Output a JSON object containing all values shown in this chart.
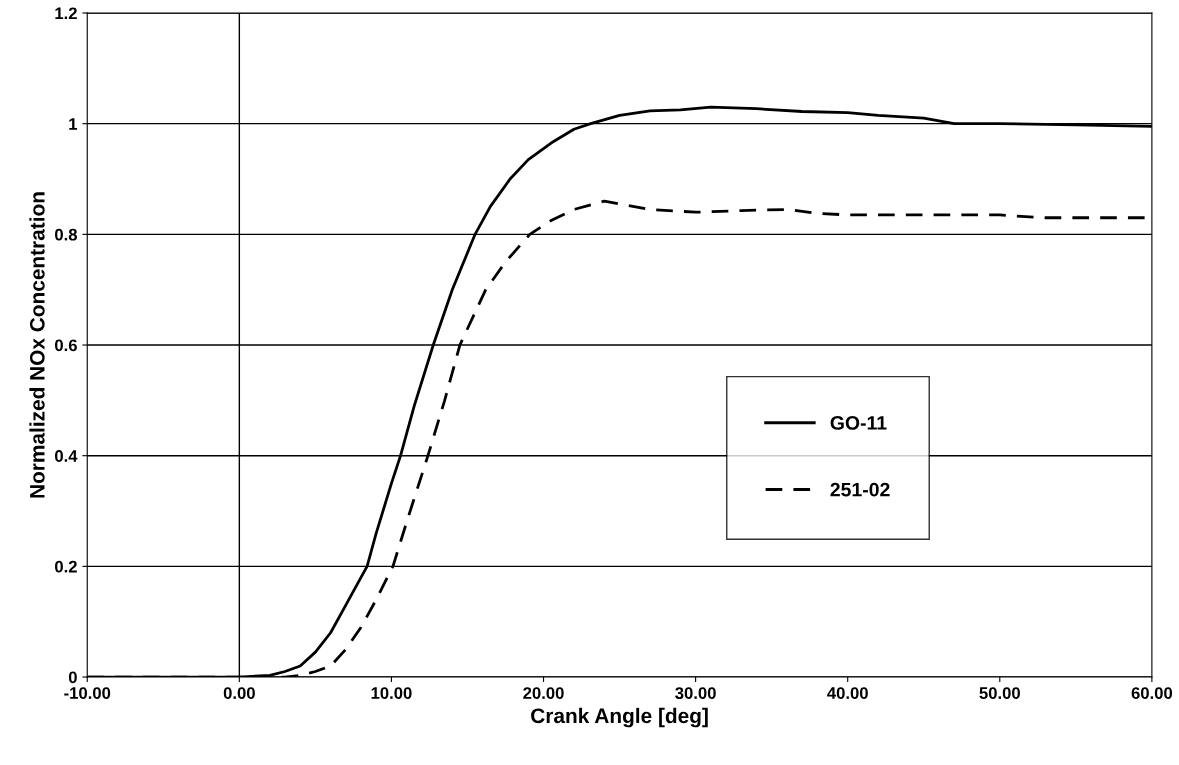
{
  "chart_data": {
    "type": "line",
    "xlabel": "Crank Angle [deg]",
    "ylabel": "Normalized NOx Concentration",
    "xlim": [
      -10,
      60
    ],
    "xticks": [
      {
        "value": -10,
        "label": "-10.00"
      },
      {
        "value": 0,
        "label": "0.00"
      },
      {
        "value": 10,
        "label": "10.00"
      },
      {
        "value": 20,
        "label": "20.00"
      },
      {
        "value": 30,
        "label": "30.00"
      },
      {
        "value": 40,
        "label": "40.00"
      },
      {
        "value": 50,
        "label": "50.00"
      },
      {
        "value": 60,
        "label": "60.00"
      }
    ],
    "ylim": [
      0,
      1.2
    ],
    "yticks": [
      0,
      0.2,
      0.4,
      0.6,
      0.8,
      1,
      1.2
    ],
    "grid": "y",
    "legend": "right",
    "marker": "none",
    "ref_lines": [
      {
        "axis": "x",
        "value": 0,
        "color": "#000000",
        "line_style": "solid"
      }
    ],
    "series": [
      {
        "name": "GO-11",
        "color": "#000000",
        "line_style": "solid",
        "x": [
          -10,
          0,
          2,
          3,
          4,
          5,
          6,
          7,
          8,
          8.4,
          9,
          10,
          10.6,
          11.5,
          12.75,
          14,
          15.5,
          16.5,
          17.8,
          19,
          20.5,
          22,
          23.1,
          25,
          27,
          29,
          31,
          34,
          37,
          40,
          42,
          45,
          47,
          50,
          55,
          60
        ],
        "values": [
          0,
          0,
          0.003,
          0.01,
          0.02,
          0.045,
          0.08,
          0.13,
          0.18,
          0.2,
          0.26,
          0.35,
          0.4,
          0.49,
          0.6,
          0.7,
          0.8,
          0.85,
          0.9,
          0.935,
          0.965,
          0.99,
          1.0,
          1.015,
          1.023,
          1.025,
          1.03,
          1.027,
          1.022,
          1.02,
          1.015,
          1.01,
          1.0,
          1.0,
          0.998,
          0.995
        ]
      },
      {
        "name": "251-02",
        "color": "#000000",
        "line_style": "dashed",
        "x": [
          -10,
          0,
          3,
          4,
          5,
          6,
          7,
          8,
          9,
          10.1,
          11,
          12.4,
          13.5,
          14.5,
          16.2,
          17.5,
          19.1,
          20.5,
          22,
          24,
          27,
          30,
          33,
          36,
          38,
          40,
          45,
          50,
          53,
          60
        ],
        "values": [
          0,
          0,
          0,
          0.003,
          0.01,
          0.02,
          0.05,
          0.09,
          0.14,
          0.2,
          0.28,
          0.4,
          0.5,
          0.6,
          0.7,
          0.75,
          0.8,
          0.825,
          0.845,
          0.86,
          0.845,
          0.84,
          0.843,
          0.845,
          0.838,
          0.835,
          0.835,
          0.835,
          0.83,
          0.83
        ]
      }
    ]
  }
}
